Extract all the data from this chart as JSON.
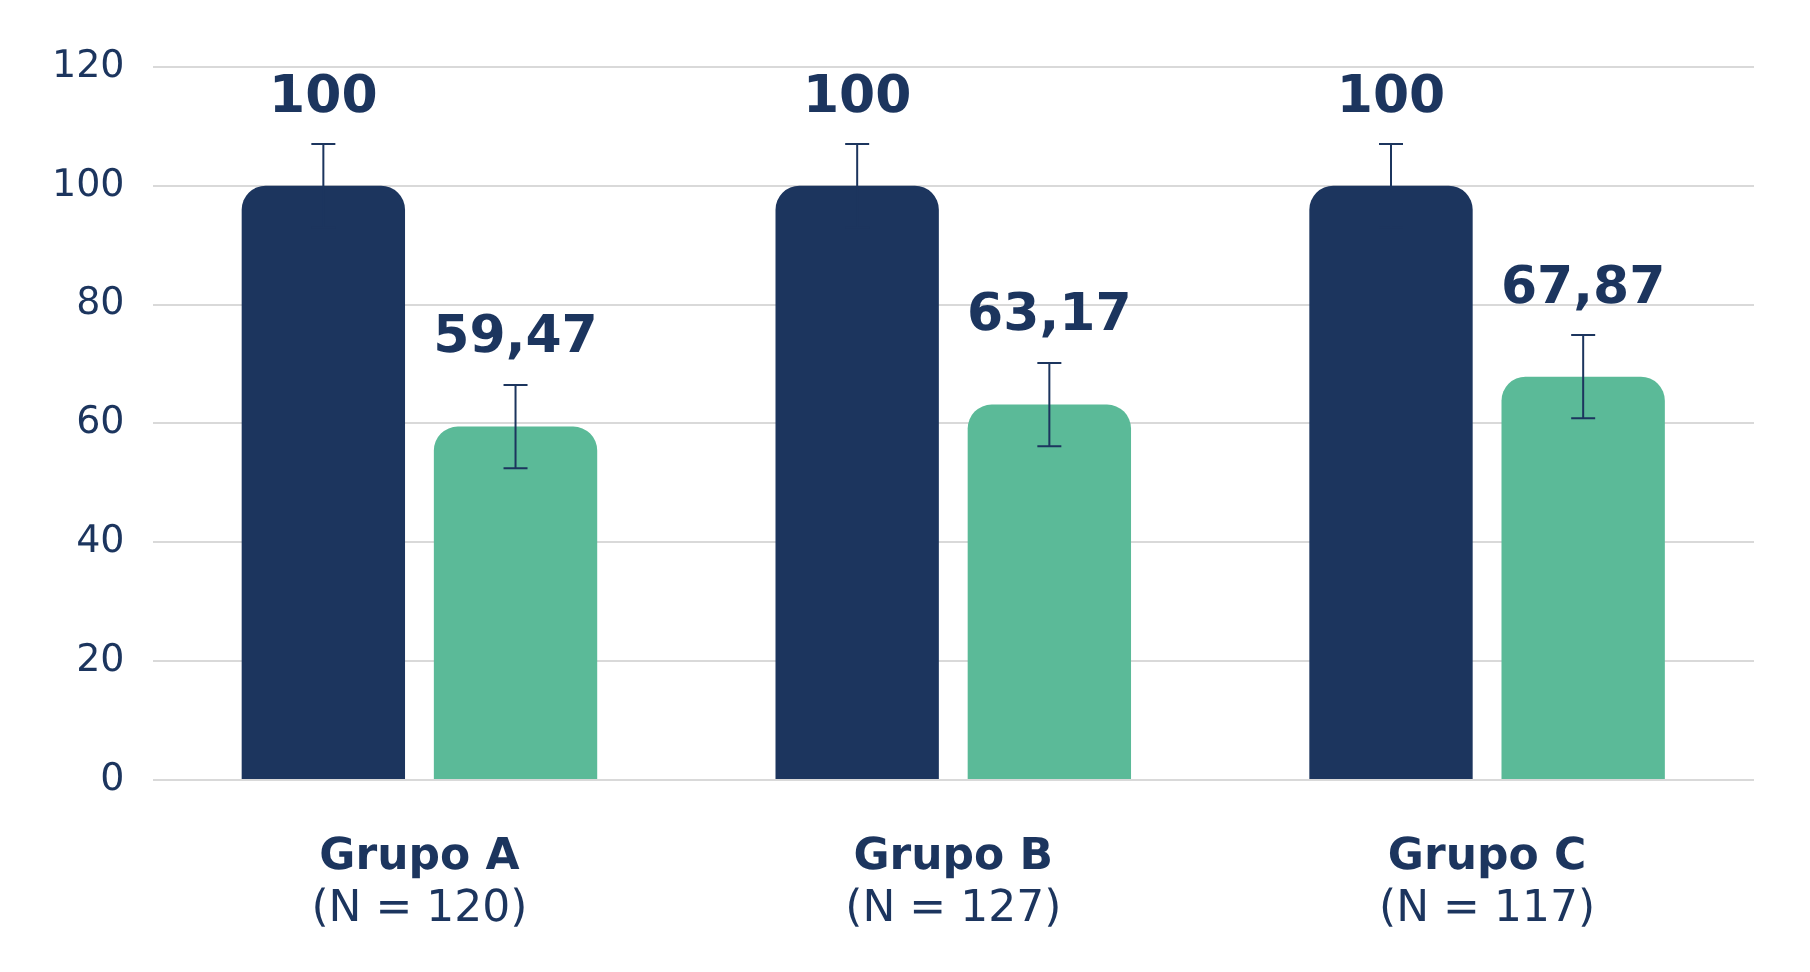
{
  "chart_data": {
    "type": "bar",
    "categories": [
      "Grupo A\n(N = 120)",
      "Grupo B\n(N = 127)",
      "Grupo C\n(N = 117)"
    ],
    "series": [
      {
        "color": "#1c355e",
        "values": [
          100,
          100,
          100
        ],
        "errors": [
          7,
          7,
          7
        ],
        "value_labels": [
          "100",
          "100",
          "100"
        ]
      },
      {
        "color": "#5bba98",
        "values": [
          59.47,
          63.17,
          67.87
        ],
        "errors": [
          7,
          7,
          7
        ],
        "value_labels": [
          "59,47",
          "63,17",
          "67,87"
        ]
      }
    ],
    "ylim": [
      0,
      120
    ],
    "yticks": [
      0,
      20,
      40,
      60,
      80,
      100,
      120
    ],
    "grid": "y",
    "legend": false
  }
}
